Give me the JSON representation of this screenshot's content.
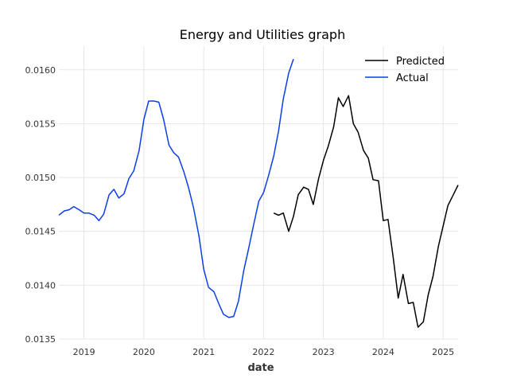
{
  "chart_data": {
    "type": "line",
    "title": "Energy and Utilities graph",
    "xlabel": "date",
    "ylabel": "",
    "xlim": [
      2018.58,
      2025.25
    ],
    "ylim": [
      0.0135,
      0.01622
    ],
    "x_ticks": [
      2019,
      2020,
      2021,
      2022,
      2023,
      2024,
      2025
    ],
    "x_tick_labels": [
      "2019",
      "2020",
      "2021",
      "2022",
      "2023",
      "2024",
      "2025"
    ],
    "y_ticks": [
      0.0135,
      0.014,
      0.0145,
      0.015,
      0.0155,
      0.016
    ],
    "y_tick_labels": [
      "0.0135",
      "0.0140",
      "0.0145",
      "0.0150",
      "0.0155",
      "0.0160"
    ],
    "grid": true,
    "legend_position": "top-right",
    "series": [
      {
        "name": "Actual",
        "color": "#0b3fe6",
        "x": [
          2018.58,
          2018.67,
          2018.75,
          2018.83,
          2018.92,
          2019.0,
          2019.08,
          2019.17,
          2019.25,
          2019.33,
          2019.42,
          2019.5,
          2019.58,
          2019.67,
          2019.75,
          2019.83,
          2019.92,
          2020.0,
          2020.08,
          2020.17,
          2020.25,
          2020.33,
          2020.42,
          2020.5,
          2020.58,
          2020.67,
          2020.75,
          2020.83,
          2020.92,
          2021.0,
          2021.08,
          2021.17,
          2021.25,
          2021.33,
          2021.42,
          2021.5,
          2021.58,
          2021.67,
          2021.75,
          2021.83,
          2021.92,
          2022.0,
          2022.08,
          2022.17,
          2022.25,
          2022.33,
          2022.42,
          2022.5
        ],
        "y": [
          0.01465,
          0.01469,
          0.0147,
          0.01473,
          0.0147,
          0.01467,
          0.01467,
          0.01465,
          0.0146,
          0.01466,
          0.01484,
          0.01489,
          0.01481,
          0.01485,
          0.01499,
          0.01506,
          0.01525,
          0.01554,
          0.01571,
          0.01571,
          0.0157,
          0.01554,
          0.0153,
          0.01523,
          0.01519,
          0.01505,
          0.0149,
          0.01472,
          0.01446,
          0.01415,
          0.01398,
          0.01394,
          0.01383,
          0.01373,
          0.0137,
          0.01371,
          0.01385,
          0.01414,
          0.01434,
          0.01455,
          0.01478,
          0.01486,
          0.01501,
          0.0152,
          0.01543,
          0.01573,
          0.01597,
          0.0161
        ]
      },
      {
        "name": "Predicted",
        "color": "#000000",
        "x": [
          2022.17,
          2022.25,
          2022.33,
          2022.42,
          2022.5,
          2022.58,
          2022.67,
          2022.75,
          2022.83,
          2022.92,
          2023.0,
          2023.08,
          2023.17,
          2023.25,
          2023.33,
          2023.42,
          2023.5,
          2023.58,
          2023.67,
          2023.75,
          2023.83,
          2023.92,
          2024.0,
          2024.08,
          2024.17,
          2024.25,
          2024.33,
          2024.42,
          2024.5,
          2024.58,
          2024.67,
          2024.75,
          2024.83,
          2024.92,
          2025.0,
          2025.08,
          2025.17,
          2025.25
        ],
        "y": [
          0.01467,
          0.01465,
          0.01467,
          0.0145,
          0.01464,
          0.01484,
          0.01491,
          0.01489,
          0.01475,
          0.01499,
          0.01516,
          0.01529,
          0.01547,
          0.01574,
          0.01566,
          0.01576,
          0.0155,
          0.01542,
          0.01525,
          0.01518,
          0.01498,
          0.01497,
          0.0146,
          0.01461,
          0.01424,
          0.01388,
          0.0141,
          0.01383,
          0.01384,
          0.01361,
          0.01366,
          0.01391,
          0.01408,
          0.01436,
          0.01455,
          0.01474,
          0.01484,
          0.01493
        ]
      }
    ]
  }
}
